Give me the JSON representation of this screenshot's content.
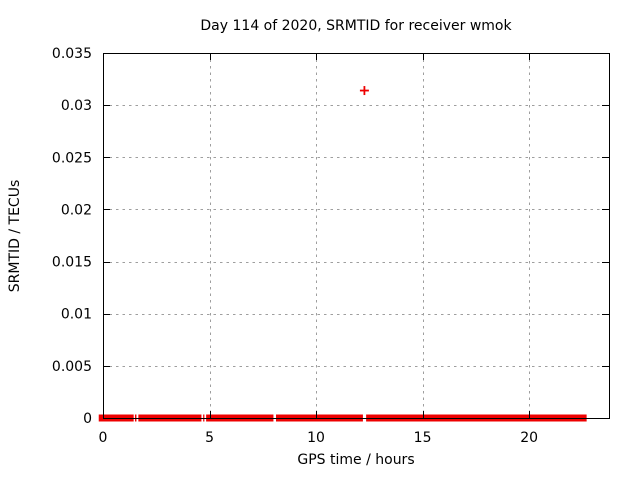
{
  "figure": {
    "background": "#ffffff",
    "text_color": "#000000"
  },
  "chart_data": {
    "type": "scatter",
    "title": "Day 114 of 2020, SRMTID for receiver wmok",
    "xlabel": "GPS time / hours",
    "ylabel": "SRMTID / TECUs",
    "xlim": [
      0,
      23.75
    ],
    "ylim": [
      0,
      0.035
    ],
    "x_ticks": [
      0,
      5,
      10,
      15,
      20
    ],
    "x_tick_labels": [
      "0",
      "5",
      "10",
      "15",
      "20"
    ],
    "y_ticks": [
      0,
      0.005,
      0.01,
      0.015,
      0.02,
      0.025,
      0.03,
      0.035
    ],
    "y_tick_labels": [
      "0",
      "0.005",
      "0.01",
      "0.015",
      "0.02",
      "0.025",
      "0.03",
      "0.035"
    ],
    "grid": "dashed",
    "grid_color": "#9e9e9e",
    "border_color": "#000000",
    "legend": "none",
    "series": [
      {
        "name": "SRMTID",
        "color": "#ee0000",
        "marker": "plus",
        "baseline_value": 0,
        "baseline_segments_hours": [
          [
            -0.2,
            1.44
          ],
          [
            1.5,
            1.57
          ],
          [
            1.66,
            4.62
          ],
          [
            4.7,
            4.76
          ],
          [
            4.84,
            8.0
          ],
          [
            8.12,
            12.2
          ],
          [
            12.35,
            22.7
          ]
        ],
        "outlier_points": [
          {
            "x": 12.27,
            "y": 0.0314
          }
        ]
      }
    ]
  }
}
